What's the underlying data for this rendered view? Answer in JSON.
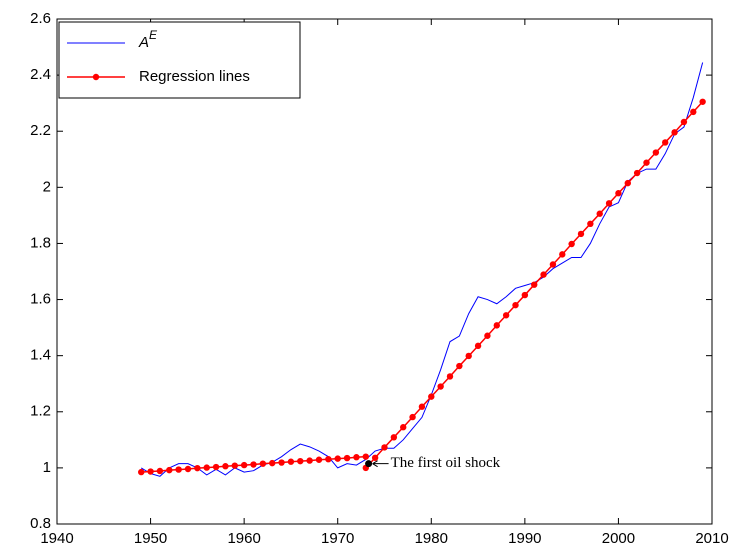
{
  "chart_data": {
    "type": "line",
    "xlim": [
      1940,
      2010
    ],
    "xticks": [
      1940,
      1950,
      1960,
      1970,
      1980,
      1990,
      2000,
      2010
    ],
    "ylim": [
      0.8,
      2.6
    ],
    "yticks": [
      0.8,
      1,
      1.2,
      1.4,
      1.6,
      1.8,
      2,
      2.2,
      2.4,
      2.6
    ],
    "legend": "upper-left",
    "series": [
      {
        "name": "A",
        "name_superscript": "E",
        "color": "#0000ff",
        "marker": false,
        "x": [
          1949,
          1950,
          1951,
          1952,
          1953,
          1954,
          1955,
          1956,
          1957,
          1958,
          1959,
          1960,
          1961,
          1962,
          1963,
          1964,
          1965,
          1966,
          1967,
          1968,
          1969,
          1970,
          1971,
          1972,
          1973,
          1974,
          1975,
          1976,
          1977,
          1978,
          1979,
          1980,
          1981,
          1982,
          1983,
          1984,
          1985,
          1986,
          1987,
          1988,
          1989,
          1990,
          1991,
          1992,
          1993,
          1994,
          1995,
          1996,
          1997,
          1998,
          1999,
          2000,
          2001,
          2002,
          2003,
          2004,
          2005,
          2006,
          2007,
          2008,
          2009
        ],
        "values": [
          1.0,
          0.98,
          0.97,
          1.0,
          1.015,
          1.015,
          1.0,
          0.975,
          0.995,
          0.975,
          1.0,
          0.985,
          0.99,
          1.01,
          1.02,
          1.04,
          1.065,
          1.085,
          1.075,
          1.06,
          1.04,
          1.0,
          1.015,
          1.01,
          1.03,
          1.06,
          1.07,
          1.07,
          1.1,
          1.14,
          1.18,
          1.26,
          1.35,
          1.45,
          1.47,
          1.55,
          1.61,
          1.6,
          1.585,
          1.61,
          1.64,
          1.65,
          1.66,
          1.68,
          1.71,
          1.73,
          1.75,
          1.75,
          1.8,
          1.87,
          1.93,
          1.945,
          2.02,
          2.05,
          2.065,
          2.065,
          2.12,
          2.19,
          2.215,
          2.32,
          2.445
        ]
      },
      {
        "name": "Regression lines",
        "color": "#ff0000",
        "marker": true,
        "x": [
          1949,
          1950,
          1951,
          1952,
          1953,
          1954,
          1955,
          1956,
          1957,
          1958,
          1959,
          1960,
          1961,
          1962,
          1963,
          1964,
          1965,
          1966,
          1967,
          1968,
          1969,
          1970,
          1971,
          1972,
          1973,
          1973,
          1973,
          1974,
          1975,
          1976,
          1977,
          1978,
          1979,
          1980,
          1981,
          1982,
          1983,
          1984,
          1985,
          1986,
          1987,
          1988,
          1989,
          1990,
          1991,
          1992,
          1993,
          1994,
          1995,
          1996,
          1997,
          1998,
          1999,
          2000,
          2001,
          2002,
          2003,
          2004,
          2005,
          2006,
          2007,
          2008,
          2009
        ],
        "values": [
          0.985,
          0.987,
          0.989,
          0.992,
          0.994,
          0.996,
          0.999,
          1.001,
          1.003,
          1.006,
          1.008,
          1.01,
          1.012,
          1.015,
          1.017,
          1.019,
          1.022,
          1.024,
          1.026,
          1.029,
          1.031,
          1.033,
          1.035,
          1.038,
          1.04,
          null,
          1.0,
          1.036,
          1.073,
          1.109,
          1.145,
          1.181,
          1.218,
          1.254,
          1.29,
          1.326,
          1.363,
          1.399,
          1.435,
          1.471,
          1.508,
          1.544,
          1.58,
          1.616,
          1.653,
          1.689,
          1.725,
          1.761,
          1.798,
          1.834,
          1.87,
          1.906,
          1.943,
          1.979,
          2.015,
          2.051,
          2.088,
          2.124,
          2.16,
          2.196,
          2.233,
          2.269,
          2.305
        ]
      }
    ],
    "annotation": {
      "text": "The first oil shock",
      "x": 1973.3,
      "y": 1.015,
      "color": "#000000"
    }
  }
}
